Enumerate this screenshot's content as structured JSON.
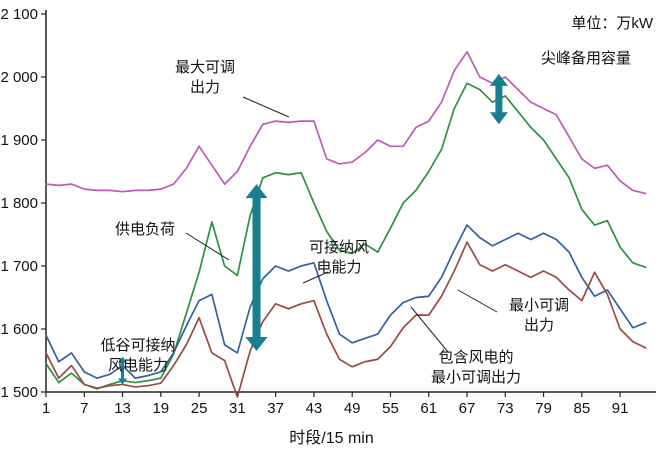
{
  "unit_label": "单位：万kW",
  "annotations": {
    "max_output": "最大可调\n出力",
    "peak_reserve": "尖峰备用容量",
    "load": "供电负荷",
    "wind_acceptance": "可接纳风\n电能力",
    "valley_wind_acceptance": "低谷可接纳\n风电能力",
    "min_output": "最小可调\n出力",
    "min_output_with_wind": "包含风电的\n最小可调出力"
  },
  "chart_data": {
    "type": "line",
    "xlabel": "时段/15 min",
    "ylabel": "万kW",
    "xlim": [
      1,
      96
    ],
    "ylim": [
      1500,
      2100
    ],
    "x_tick_labels": [
      1,
      7,
      13,
      19,
      25,
      31,
      37,
      43,
      49,
      55,
      61,
      67,
      73,
      79,
      85,
      91
    ],
    "y_tick_labels": [
      "1 500",
      "1 600",
      "1 700",
      "1 800",
      "1 900",
      "2 000",
      "2 100"
    ],
    "grid": false,
    "legend": "none",
    "x_sample_points": [
      1,
      3,
      5,
      7,
      9,
      11,
      13,
      15,
      17,
      19,
      21,
      23,
      25,
      27,
      29,
      31,
      33,
      35,
      37,
      39,
      41,
      43,
      45,
      47,
      49,
      51,
      53,
      55,
      57,
      59,
      61,
      63,
      65,
      67,
      69,
      71,
      73,
      75,
      77,
      79,
      81,
      83,
      85,
      87,
      89,
      91,
      93,
      95
    ],
    "series": [
      {
        "name": "最大可调出力",
        "color": "#bb5db1",
        "values": [
          1830,
          1828,
          1830,
          1822,
          1820,
          1820,
          1818,
          1820,
          1820,
          1822,
          1830,
          1855,
          1890,
          1860,
          1830,
          1850,
          1890,
          1925,
          1930,
          1928,
          1930,
          1930,
          1870,
          1862,
          1865,
          1880,
          1900,
          1890,
          1890,
          1920,
          1930,
          1960,
          2010,
          2040,
          2000,
          1990,
          2000,
          1980,
          1960,
          1950,
          1940,
          1905,
          1870,
          1855,
          1860,
          1835,
          1820,
          1815
        ]
      },
      {
        "name": "供电负荷",
        "color": "#2d9042",
        "values": [
          1545,
          1515,
          1530,
          1512,
          1505,
          1512,
          1518,
          1515,
          1518,
          1522,
          1560,
          1625,
          1690,
          1770,
          1700,
          1685,
          1780,
          1840,
          1848,
          1845,
          1848,
          1800,
          1755,
          1725,
          1720,
          1735,
          1722,
          1760,
          1800,
          1820,
          1850,
          1885,
          1950,
          1990,
          1980,
          1960,
          1970,
          1945,
          1920,
          1900,
          1870,
          1840,
          1790,
          1765,
          1772,
          1730,
          1705,
          1698
        ]
      },
      {
        "name": "可接纳风电能力",
        "color": "#33619e",
        "values": [
          1590,
          1548,
          1562,
          1532,
          1522,
          1528,
          1542,
          1522,
          1526,
          1532,
          1562,
          1605,
          1645,
          1655,
          1575,
          1562,
          1635,
          1680,
          1700,
          1692,
          1700,
          1705,
          1645,
          1592,
          1578,
          1585,
          1592,
          1622,
          1642,
          1650,
          1652,
          1682,
          1725,
          1765,
          1745,
          1732,
          1742,
          1752,
          1742,
          1752,
          1742,
          1722,
          1682,
          1652,
          1662,
          1632,
          1602,
          1610
        ]
      },
      {
        "name": "最小可调出力",
        "color": "#9a4a45",
        "values": [
          1562,
          1522,
          1542,
          1512,
          1506,
          1510,
          1512,
          1508,
          1510,
          1514,
          1542,
          1575,
          1618,
          1562,
          1550,
          1492,
          1565,
          1612,
          1640,
          1632,
          1640,
          1645,
          1592,
          1552,
          1540,
          1548,
          1552,
          1572,
          1602,
          1622,
          1622,
          1652,
          1692,
          1738,
          1702,
          1692,
          1702,
          1692,
          1682,
          1692,
          1682,
          1662,
          1645,
          1690,
          1655,
          1600,
          1580,
          1570
        ]
      }
    ],
    "arrows": [
      {
        "name": "wind-acceptance-arrow",
        "x": 34,
        "from": 1565,
        "to": 1830,
        "color": "#177f90",
        "size": "large"
      },
      {
        "name": "peak-reserve-arrow",
        "x": 72,
        "from": 1925,
        "to": 2005,
        "color": "#177f90",
        "size": "medium"
      },
      {
        "name": "valley-wind-arrow",
        "x": 13,
        "from": 1512,
        "to": 1556,
        "color": "#177f90",
        "size": "small"
      }
    ]
  }
}
